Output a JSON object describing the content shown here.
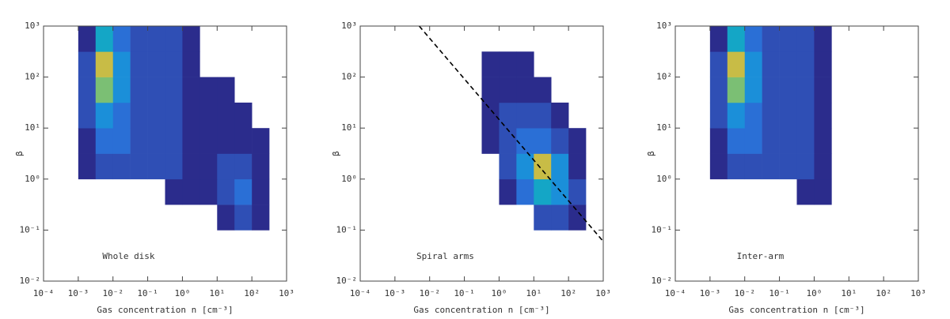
{
  "chart_data": [
    {
      "type": "heatmap",
      "annotation": "Whole disk",
      "xlabel": "Gas concentration n [cm⁻³]",
      "ylabel": "β",
      "log_x": true,
      "log_y": true,
      "xlim": [
        0.0001,
        1000
      ],
      "ylim": [
        0.01,
        1000
      ],
      "xticks": [
        {
          "value": 0.0001,
          "label": "10⁻⁴"
        },
        {
          "value": 0.001,
          "label": "10⁻³"
        },
        {
          "value": 0.01,
          "label": "10⁻²"
        },
        {
          "value": 0.1,
          "label": "10⁻¹"
        },
        {
          "value": 1,
          "label": "10⁰"
        },
        {
          "value": 10,
          "label": "10¹"
        },
        {
          "value": 100,
          "label": "10²"
        },
        {
          "value": 1000,
          "label": "10³"
        }
      ],
      "yticks": [
        {
          "value": 0.01,
          "label": "10⁻²"
        },
        {
          "value": 0.1,
          "label": "10⁻¹"
        },
        {
          "value": 1,
          "label": "10⁰"
        },
        {
          "value": 10,
          "label": "10¹"
        },
        {
          "value": 100,
          "label": "10²"
        },
        {
          "value": 1000,
          "label": "10³"
        }
      ],
      "colormap": [
        "#2b2c8c",
        "#2f4fb5",
        "#2a6fd6",
        "#1b8fd9",
        "#14a6c6",
        "#2fb7a4",
        "#7bbf74",
        "#c8bc46",
        "#f5c533"
      ],
      "x_edges": [
        0.0001,
        0.000316,
        0.001,
        0.00316,
        0.01,
        0.0316,
        0.1,
        0.316,
        1,
        3.16,
        10,
        31.6,
        100,
        316,
        1000
      ],
      "y_edges": [
        0.01,
        0.0316,
        0.1,
        0.316,
        1,
        3.16,
        10,
        31.6,
        100,
        316,
        1000
      ],
      "z": [
        [
          0,
          0,
          0,
          0,
          0,
          0,
          0,
          0,
          0,
          0,
          0,
          0,
          0,
          0
        ],
        [
          0,
          0,
          0,
          0,
          0,
          0,
          0,
          0,
          0,
          0,
          0,
          0,
          0,
          0
        ],
        [
          0,
          0,
          0,
          0,
          0,
          0,
          0,
          0,
          0,
          0,
          1,
          2,
          1,
          0
        ],
        [
          0,
          0,
          0,
          0,
          0,
          0,
          0,
          1,
          1,
          1,
          2,
          3,
          1,
          0
        ],
        [
          0,
          0,
          1,
          2,
          2,
          2,
          2,
          2,
          1,
          1,
          2,
          2,
          1,
          0
        ],
        [
          0,
          0,
          1,
          3,
          3,
          2,
          2,
          2,
          1,
          1,
          1,
          1,
          1,
          0
        ],
        [
          0,
          0,
          2,
          4,
          3,
          2,
          2,
          2,
          1,
          1,
          1,
          1,
          0,
          0
        ],
        [
          0,
          0,
          2,
          7,
          4,
          2,
          2,
          2,
          1,
          1,
          1,
          0,
          0,
          0
        ],
        [
          0,
          0,
          2,
          8,
          4,
          2,
          2,
          2,
          1,
          0,
          0,
          0,
          0,
          0
        ],
        [
          0,
          0,
          1,
          5,
          3,
          2,
          2,
          2,
          1,
          0,
          0,
          0,
          0,
          0
        ]
      ]
    },
    {
      "type": "heatmap",
      "annotation": "Spiral arms",
      "xlabel": "Gas concentration n [cm⁻³]",
      "ylabel": "β",
      "log_x": true,
      "log_y": true,
      "xlim": [
        0.0001,
        1000
      ],
      "ylim": [
        0.01,
        1000
      ],
      "xticks": [
        {
          "value": 0.0001,
          "label": "10⁻⁴"
        },
        {
          "value": 0.001,
          "label": "10⁻³"
        },
        {
          "value": 0.01,
          "label": "10⁻²"
        },
        {
          "value": 0.1,
          "label": "10⁻¹"
        },
        {
          "value": 1,
          "label": "10⁰"
        },
        {
          "value": 10,
          "label": "10¹"
        },
        {
          "value": 100,
          "label": "10²"
        },
        {
          "value": 1000,
          "label": "10³"
        }
      ],
      "yticks": [
        {
          "value": 0.01,
          "label": "10⁻²"
        },
        {
          "value": 0.1,
          "label": "10⁻¹"
        },
        {
          "value": 1,
          "label": "10⁰"
        },
        {
          "value": 10,
          "label": "10¹"
        },
        {
          "value": 100,
          "label": "10²"
        },
        {
          "value": 1000,
          "label": "10³"
        }
      ],
      "colormap": [
        "#2b2c8c",
        "#2f4fb5",
        "#2a6fd6",
        "#1b8fd9",
        "#14a6c6",
        "#2fb7a4",
        "#7bbf74",
        "#c8bc46",
        "#f5c533"
      ],
      "x_edges": [
        0.0001,
        0.000316,
        0.001,
        0.00316,
        0.01,
        0.0316,
        0.1,
        0.316,
        1,
        3.16,
        10,
        31.6,
        100,
        316,
        1000
      ],
      "y_edges": [
        0.01,
        0.0316,
        0.1,
        0.316,
        1,
        3.16,
        10,
        31.6,
        100,
        316,
        1000
      ],
      "z": [
        [
          0,
          0,
          0,
          0,
          0,
          0,
          0,
          0,
          0,
          0,
          0,
          0,
          0,
          0
        ],
        [
          0,
          0,
          0,
          0,
          0,
          0,
          0,
          0,
          0,
          0,
          0,
          0,
          0,
          0
        ],
        [
          0,
          0,
          0,
          0,
          0,
          0,
          0,
          0,
          0,
          0,
          2,
          2,
          1,
          0
        ],
        [
          0,
          0,
          0,
          0,
          0,
          0,
          0,
          0,
          1,
          3,
          5,
          4,
          2,
          0
        ],
        [
          0,
          0,
          0,
          0,
          0,
          0,
          0,
          0,
          2,
          4,
          8,
          4,
          1,
          0
        ],
        [
          0,
          0,
          0,
          0,
          0,
          0,
          0,
          1,
          2,
          3,
          3,
          2,
          1,
          0
        ],
        [
          0,
          0,
          0,
          0,
          0,
          0,
          0,
          1,
          2,
          2,
          2,
          1,
          0,
          0
        ],
        [
          0,
          0,
          0,
          0,
          0,
          0,
          0,
          1,
          1,
          1,
          1,
          0,
          0,
          0
        ],
        [
          0,
          0,
          0,
          0,
          0,
          0,
          0,
          1,
          1,
          1,
          0,
          0,
          0,
          0
        ],
        [
          0,
          0,
          0,
          0,
          0,
          0,
          0,
          0,
          0,
          0,
          0,
          0,
          0,
          0
        ]
      ],
      "lines": [
        {
          "x": [
            0.005,
            1000
          ],
          "y": [
            1000,
            0.06
          ],
          "style": "dashed",
          "color": "#000000"
        }
      ]
    },
    {
      "type": "heatmap",
      "annotation": "Inter-arm",
      "xlabel": "Gas concentration n [cm⁻³]",
      "ylabel": "β",
      "log_x": true,
      "log_y": true,
      "xlim": [
        0.0001,
        1000
      ],
      "ylim": [
        0.01,
        1000
      ],
      "xticks": [
        {
          "value": 0.0001,
          "label": "10⁻⁴"
        },
        {
          "value": 0.001,
          "label": "10⁻³"
        },
        {
          "value": 0.01,
          "label": "10⁻²"
        },
        {
          "value": 0.1,
          "label": "10⁻¹"
        },
        {
          "value": 1,
          "label": "10⁰"
        },
        {
          "value": 10,
          "label": "10¹"
        },
        {
          "value": 100,
          "label": "10²"
        },
        {
          "value": 1000,
          "label": "10³"
        }
      ],
      "yticks": [
        {
          "value": 0.01,
          "label": "10⁻²"
        },
        {
          "value": 0.1,
          "label": "10⁻¹"
        },
        {
          "value": 1,
          "label": "10⁰"
        },
        {
          "value": 10,
          "label": "10¹"
        },
        {
          "value": 100,
          "label": "10²"
        },
        {
          "value": 1000,
          "label": "10³"
        }
      ],
      "colormap": [
        "#2b2c8c",
        "#2f4fb5",
        "#2a6fd6",
        "#1b8fd9",
        "#14a6c6",
        "#2fb7a4",
        "#7bbf74",
        "#c8bc46",
        "#f5c533"
      ],
      "x_edges": [
        0.0001,
        0.000316,
        0.001,
        0.00316,
        0.01,
        0.0316,
        0.1,
        0.316,
        1,
        3.16,
        10,
        31.6,
        100,
        316,
        1000
      ],
      "y_edges": [
        0.01,
        0.0316,
        0.1,
        0.316,
        1,
        3.16,
        10,
        31.6,
        100,
        316,
        1000
      ],
      "z": [
        [
          0,
          0,
          0,
          0,
          0,
          0,
          0,
          0,
          0,
          0,
          0,
          0,
          0,
          0
        ],
        [
          0,
          0,
          0,
          0,
          0,
          0,
          0,
          0,
          0,
          0,
          0,
          0,
          0,
          0
        ],
        [
          0,
          0,
          0,
          0,
          0,
          0,
          0,
          0,
          0,
          0,
          0,
          0,
          0,
          0
        ],
        [
          0,
          0,
          0,
          0,
          0,
          0,
          0,
          1,
          1,
          0,
          0,
          0,
          0,
          0
        ],
        [
          0,
          0,
          1,
          2,
          2,
          2,
          2,
          2,
          1,
          0,
          0,
          0,
          0,
          0
        ],
        [
          0,
          0,
          1,
          3,
          3,
          2,
          2,
          2,
          1,
          0,
          0,
          0,
          0,
          0
        ],
        [
          0,
          0,
          2,
          4,
          3,
          2,
          2,
          2,
          1,
          0,
          0,
          0,
          0,
          0
        ],
        [
          0,
          0,
          2,
          7,
          4,
          2,
          2,
          2,
          1,
          0,
          0,
          0,
          0,
          0
        ],
        [
          0,
          0,
          2,
          8,
          4,
          2,
          2,
          2,
          1,
          0,
          0,
          0,
          0,
          0
        ],
        [
          0,
          0,
          1,
          5,
          3,
          2,
          2,
          2,
          1,
          0,
          0,
          0,
          0,
          0
        ]
      ]
    }
  ]
}
